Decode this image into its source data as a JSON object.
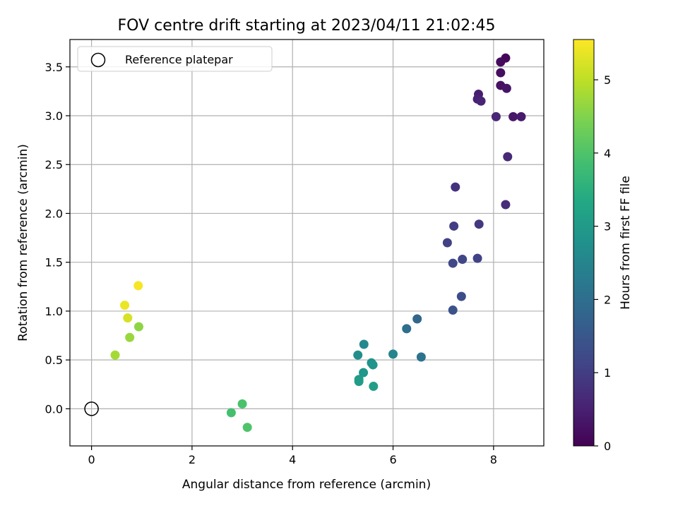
{
  "chart_data": {
    "type": "scatter",
    "title": "FOV centre drift starting at 2023/04/11 21:02:45",
    "xlabel": "Angular distance from reference (arcmin)",
    "ylabel": "Rotation from reference (arcmin)",
    "xlim": [
      -0.43,
      9.0
    ],
    "ylim": [
      -0.38,
      3.78
    ],
    "xticks": [
      0,
      2,
      4,
      6,
      8
    ],
    "yticks": [
      0.0,
      0.5,
      1.0,
      1.5,
      2.0,
      2.5,
      3.0,
      3.5
    ],
    "xtick_labels": [
      "0",
      "2",
      "4",
      "6",
      "8"
    ],
    "ytick_labels": [
      "0.0",
      "0.5",
      "1.0",
      "1.5",
      "2.0",
      "2.5",
      "3.0",
      "3.5"
    ],
    "grid": true,
    "legend": {
      "label": "Reference platepar",
      "placement": "top-left"
    },
    "reference_point": {
      "x": 0,
      "y": 0
    },
    "colorbar": {
      "label": "Hours from first FF file",
      "range": [
        0,
        5.55
      ],
      "ticks": [
        0,
        1,
        2,
        3,
        4,
        5
      ],
      "tick_labels": [
        "0",
        "1",
        "2",
        "3",
        "4",
        "5"
      ],
      "colormap": "viridis"
    },
    "points": [
      {
        "x": 8.24,
        "y": 3.59,
        "hours": 0.1
      },
      {
        "x": 8.14,
        "y": 3.55,
        "hours": 0.15
      },
      {
        "x": 8.14,
        "y": 3.44,
        "hours": 0.2
      },
      {
        "x": 8.14,
        "y": 3.31,
        "hours": 0.25
      },
      {
        "x": 8.26,
        "y": 3.28,
        "hours": 0.3
      },
      {
        "x": 8.39,
        "y": 2.99,
        "hours": 0.35
      },
      {
        "x": 8.55,
        "y": 2.99,
        "hours": 0.4
      },
      {
        "x": 7.7,
        "y": 3.22,
        "hours": 0.45
      },
      {
        "x": 7.68,
        "y": 3.17,
        "hours": 0.5
      },
      {
        "x": 7.75,
        "y": 3.15,
        "hours": 0.55
      },
      {
        "x": 8.05,
        "y": 2.99,
        "hours": 0.6
      },
      {
        "x": 8.28,
        "y": 2.58,
        "hours": 0.65
      },
      {
        "x": 8.24,
        "y": 2.09,
        "hours": 0.7
      },
      {
        "x": 7.24,
        "y": 2.27,
        "hours": 0.8
      },
      {
        "x": 7.71,
        "y": 1.89,
        "hours": 0.9
      },
      {
        "x": 7.21,
        "y": 1.87,
        "hours": 1.0
      },
      {
        "x": 7.08,
        "y": 1.7,
        "hours": 1.05
      },
      {
        "x": 7.68,
        "y": 1.54,
        "hours": 1.1
      },
      {
        "x": 7.38,
        "y": 1.53,
        "hours": 1.15
      },
      {
        "x": 7.19,
        "y": 1.49,
        "hours": 1.2
      },
      {
        "x": 7.36,
        "y": 1.15,
        "hours": 1.3
      },
      {
        "x": 7.19,
        "y": 1.01,
        "hours": 1.4
      },
      {
        "x": 6.48,
        "y": 0.92,
        "hours": 1.85
      },
      {
        "x": 6.27,
        "y": 0.82,
        "hours": 2.0
      },
      {
        "x": 6.56,
        "y": 0.53,
        "hours": 2.1
      },
      {
        "x": 6.0,
        "y": 0.56,
        "hours": 2.5
      },
      {
        "x": 5.42,
        "y": 0.66,
        "hours": 2.6
      },
      {
        "x": 5.3,
        "y": 0.55,
        "hours": 2.7
      },
      {
        "x": 5.57,
        "y": 0.47,
        "hours": 2.8
      },
      {
        "x": 5.6,
        "y": 0.45,
        "hours": 2.85
      },
      {
        "x": 5.41,
        "y": 0.37,
        "hours": 2.9
      },
      {
        "x": 5.32,
        "y": 0.3,
        "hours": 3.0
      },
      {
        "x": 5.32,
        "y": 0.28,
        "hours": 3.05
      },
      {
        "x": 5.61,
        "y": 0.23,
        "hours": 3.1
      },
      {
        "x": 2.78,
        "y": -0.04,
        "hours": 3.9
      },
      {
        "x": 3.0,
        "y": 0.05,
        "hours": 3.95
      },
      {
        "x": 3.1,
        "y": -0.19,
        "hours": 4.0
      },
      {
        "x": 0.94,
        "y": 0.84,
        "hours": 4.6
      },
      {
        "x": 0.76,
        "y": 0.73,
        "hours": 4.7
      },
      {
        "x": 0.47,
        "y": 0.55,
        "hours": 4.8
      },
      {
        "x": 0.72,
        "y": 0.93,
        "hours": 5.2
      },
      {
        "x": 0.66,
        "y": 1.06,
        "hours": 5.4
      },
      {
        "x": 0.93,
        "y": 1.26,
        "hours": 5.5
      }
    ]
  }
}
